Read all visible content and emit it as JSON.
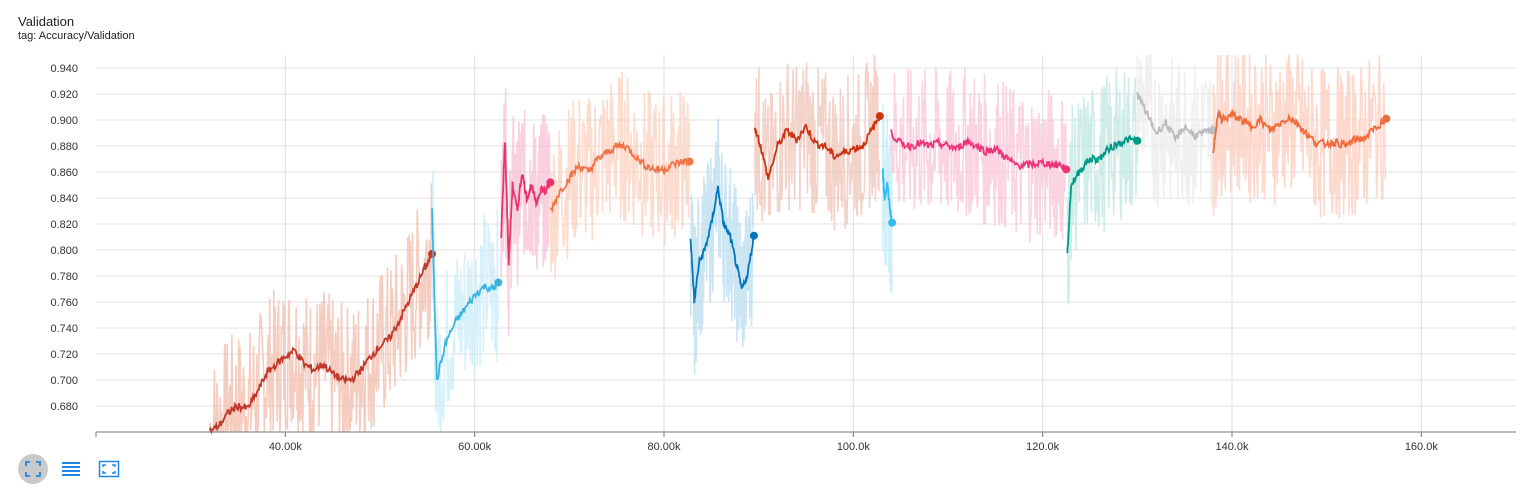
{
  "header": {
    "title": "Validation",
    "tag": "tag: Accuracy/Validation"
  },
  "controls": [
    {
      "name": "fit-domain-button",
      "icon": "expand-icon",
      "active": true
    },
    {
      "name": "toggle-log-button",
      "icon": "list-lines-icon",
      "active": false
    },
    {
      "name": "fit-data-button",
      "icon": "fit-frame-icon",
      "active": false
    }
  ],
  "colors": {
    "accent": "#1e88e5",
    "grid": "#e0e0e0"
  },
  "chart_data": {
    "type": "line",
    "title": "Validation",
    "xlabel": "",
    "ylabel": "",
    "xlim": [
      20000,
      170000
    ],
    "ylim": [
      0.66,
      0.95
    ],
    "grid": true,
    "y_ticks": [
      "0.680",
      "0.700",
      "0.720",
      "0.740",
      "0.760",
      "0.780",
      "0.800",
      "0.820",
      "0.840",
      "0.860",
      "0.880",
      "0.900",
      "0.920",
      "0.940"
    ],
    "x_ticks": [
      "40.00k",
      "60.00k",
      "80.00k",
      "100.0k",
      "120.0k",
      "140.0k",
      "160.0k"
    ],
    "series": [
      {
        "color": "#c0392b",
        "raw_color": "#f2c1b0",
        "x": [
          32000,
          33000,
          34000,
          35000,
          36000,
          37000,
          38000,
          39000,
          40000,
          41000,
          42000,
          43000,
          44000,
          45000,
          46000,
          47000,
          48000,
          49000,
          50000,
          51000,
          52000,
          53000,
          54000,
          55000,
          55500
        ],
        "y": [
          0.66,
          0.665,
          0.675,
          0.68,
          0.678,
          0.69,
          0.705,
          0.712,
          0.718,
          0.723,
          0.712,
          0.708,
          0.712,
          0.705,
          0.7,
          0.7,
          0.708,
          0.718,
          0.726,
          0.732,
          0.745,
          0.76,
          0.775,
          0.79,
          0.797
        ]
      },
      {
        "color": "#3cb4e0",
        "raw_color": "#cdeefa",
        "x": [
          55500,
          56000,
          57000,
          58000,
          59000,
          60000,
          61000,
          62000,
          62500
        ],
        "y": [
          0.83,
          0.7,
          0.73,
          0.745,
          0.755,
          0.765,
          0.772,
          0.77,
          0.775
        ]
      },
      {
        "color": "#e8336c",
        "raw_color": "#f7c6d6",
        "x": [
          62800,
          63200,
          63600,
          64000,
          64500,
          65000,
          65500,
          66000,
          66500,
          67000,
          67500,
          68000
        ],
        "y": [
          0.81,
          0.885,
          0.79,
          0.85,
          0.83,
          0.86,
          0.84,
          0.85,
          0.835,
          0.848,
          0.845,
          0.852
        ]
      },
      {
        "color": "#f0744a",
        "raw_color": "#fbd3c2",
        "x": [
          68000,
          69000,
          70000,
          71000,
          72000,
          73000,
          74000,
          75000,
          76000,
          77000,
          78000,
          79000,
          80000,
          81000,
          82000,
          82700
        ],
        "y": [
          0.83,
          0.845,
          0.855,
          0.865,
          0.86,
          0.87,
          0.875,
          0.88,
          0.88,
          0.872,
          0.865,
          0.862,
          0.862,
          0.866,
          0.868,
          0.868
        ]
      },
      {
        "color": "#0077bb",
        "raw_color": "#bfdff0",
        "x": [
          82800,
          83200,
          83700,
          84300,
          85000,
          85700,
          86300,
          87000,
          87600,
          88200,
          88800,
          89500
        ],
        "y": [
          0.81,
          0.76,
          0.79,
          0.8,
          0.82,
          0.848,
          0.82,
          0.81,
          0.79,
          0.77,
          0.78,
          0.811
        ]
      },
      {
        "color": "#cc3311",
        "raw_color": "#efc7bb",
        "x": [
          89600,
          90200,
          91000,
          92000,
          93000,
          94000,
          95000,
          96000,
          97000,
          98000,
          99000,
          100000,
          101000,
          102000,
          102800
        ],
        "y": [
          0.895,
          0.88,
          0.855,
          0.88,
          0.892,
          0.885,
          0.895,
          0.882,
          0.88,
          0.872,
          0.875,
          0.878,
          0.88,
          0.893,
          0.903
        ]
      },
      {
        "color": "#33bbee",
        "raw_color": "#c4ebf8",
        "x": [
          103100,
          103300,
          103600,
          103900,
          104100
        ],
        "y": [
          0.862,
          0.84,
          0.85,
          0.83,
          0.821
        ]
      },
      {
        "color": "#ee3377",
        "raw_color": "#f9c9da",
        "x": [
          104000,
          105000,
          106000,
          107000,
          108000,
          109000,
          110000,
          111000,
          112000,
          113000,
          114000,
          115000,
          116000,
          117000,
          118000,
          119000,
          120000,
          121000,
          122000,
          122500
        ],
        "y": [
          0.89,
          0.882,
          0.88,
          0.882,
          0.88,
          0.882,
          0.88,
          0.878,
          0.884,
          0.88,
          0.876,
          0.878,
          0.872,
          0.866,
          0.865,
          0.866,
          0.867,
          0.866,
          0.865,
          0.862
        ]
      },
      {
        "color": "#009988",
        "raw_color": "#c2e8e2",
        "x": [
          122600,
          123000,
          124000,
          125000,
          126000,
          127000,
          128000,
          129000,
          130000
        ],
        "y": [
          0.795,
          0.85,
          0.862,
          0.87,
          0.87,
          0.878,
          0.882,
          0.885,
          0.884
        ]
      },
      {
        "color": "#bbbbbb",
        "raw_color": "#ececec",
        "x": [
          130000,
          131000,
          132000,
          133000,
          134000,
          135000,
          136000,
          137000,
          138000
        ],
        "y": [
          0.92,
          0.905,
          0.89,
          0.898,
          0.885,
          0.895,
          0.888,
          0.89,
          0.892
        ]
      },
      {
        "color": "#f06b3c",
        "raw_color": "#fcd0c0",
        "x": [
          138000,
          138500,
          139000,
          140000,
          141000,
          142000,
          143000,
          144000,
          145000,
          146000,
          147000,
          148000,
          149000,
          150000,
          151000,
          152000,
          153000,
          154000,
          155000,
          156300
        ],
        "y": [
          0.875,
          0.905,
          0.9,
          0.904,
          0.9,
          0.895,
          0.9,
          0.892,
          0.897,
          0.902,
          0.897,
          0.888,
          0.882,
          0.882,
          0.883,
          0.88,
          0.885,
          0.886,
          0.893,
          0.901
        ]
      }
    ]
  }
}
